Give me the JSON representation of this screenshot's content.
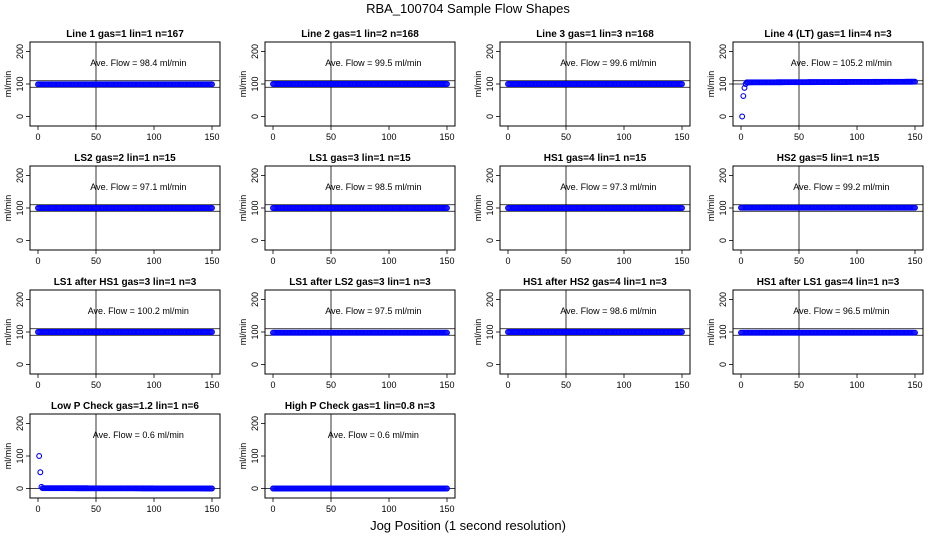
{
  "title": "RBA_100704  Sample Flow Shapes",
  "xlabel": "Jog Position (1 second resolution)",
  "ylabel": "ml/min",
  "annotation_prefix": "Ave. Flow = ",
  "annotation_unit": "ml/min",
  "colors": {
    "points": "#0000ff",
    "frame": "#000000"
  },
  "chart_data": [
    {
      "type": "scatter",
      "title": "Line 1 gas=1 lin=1 n=167",
      "ave_flow": "98.4",
      "xlim": [
        0,
        150
      ],
      "ylim": [
        -20,
        220
      ],
      "xticks": [
        0,
        50,
        100,
        150
      ],
      "yticks": [
        0,
        100,
        200
      ],
      "hlines": [
        90,
        110
      ],
      "vline": 50,
      "x": [
        0,
        150
      ],
      "y": [
        99,
        99
      ],
      "grid": false
    },
    {
      "type": "scatter",
      "title": "Line 2 gas=1 lin=2 n=168",
      "ave_flow": "99.5",
      "xlim": [
        0,
        150
      ],
      "ylim": [
        -20,
        220
      ],
      "xticks": [
        0,
        50,
        100,
        150
      ],
      "yticks": [
        0,
        100,
        200
      ],
      "hlines": [
        90,
        110
      ],
      "vline": 50,
      "x": [
        0,
        150
      ],
      "y": [
        100,
        100
      ],
      "grid": false
    },
    {
      "type": "scatter",
      "title": "Line 3 gas=1 lin=3 n=168",
      "ave_flow": "99.6",
      "xlim": [
        0,
        150
      ],
      "ylim": [
        -20,
        220
      ],
      "xticks": [
        0,
        50,
        100,
        150
      ],
      "yticks": [
        0,
        100,
        200
      ],
      "hlines": [
        90,
        110
      ],
      "vline": 50,
      "x": [
        0,
        150
      ],
      "y": [
        100,
        100
      ],
      "grid": false
    },
    {
      "type": "scatter",
      "title": "Line 4 (LT) gas=1 lin=4 n=3",
      "ave_flow": "105.2",
      "xlim": [
        0,
        150
      ],
      "ylim": [
        -20,
        220
      ],
      "xticks": [
        0,
        50,
        100,
        150
      ],
      "yticks": [
        0,
        100,
        200
      ],
      "hlines": [
        100,
        110
      ],
      "vline": 50,
      "x": [
        1,
        2,
        3,
        4,
        5,
        150
      ],
      "y": [
        0,
        63,
        88,
        100,
        105,
        107
      ],
      "grid": false
    },
    {
      "type": "scatter",
      "title": "LS2 gas=2 lin=1 n=15",
      "ave_flow": "97.1",
      "xlim": [
        0,
        150
      ],
      "ylim": [
        -20,
        220
      ],
      "xticks": [
        0,
        50,
        100,
        150
      ],
      "yticks": [
        0,
        100,
        200
      ],
      "hlines": [
        90,
        110
      ],
      "vline": 50,
      "x": [
        0,
        150
      ],
      "y": [
        100,
        100
      ],
      "grid": false
    },
    {
      "type": "scatter",
      "title": "LS1 gas=3 lin=1 n=15",
      "ave_flow": "98.5",
      "xlim": [
        0,
        150
      ],
      "ylim": [
        -20,
        220
      ],
      "xticks": [
        0,
        50,
        100,
        150
      ],
      "yticks": [
        0,
        100,
        200
      ],
      "hlines": [
        90,
        110
      ],
      "vline": 50,
      "x": [
        0,
        150
      ],
      "y": [
        100,
        100
      ],
      "grid": false
    },
    {
      "type": "scatter",
      "title": "HS1 gas=4 lin=1 n=15",
      "ave_flow": "97.3",
      "xlim": [
        0,
        150
      ],
      "ylim": [
        -20,
        220
      ],
      "xticks": [
        0,
        50,
        100,
        150
      ],
      "yticks": [
        0,
        100,
        200
      ],
      "hlines": [
        90,
        110
      ],
      "vline": 50,
      "x": [
        0,
        150
      ],
      "y": [
        100,
        100
      ],
      "grid": false
    },
    {
      "type": "scatter",
      "title": "HS2 gas=5 lin=1 n=15",
      "ave_flow": "99.2",
      "xlim": [
        0,
        150
      ],
      "ylim": [
        -20,
        220
      ],
      "xticks": [
        0,
        50,
        100,
        150
      ],
      "yticks": [
        0,
        100,
        200
      ],
      "hlines": [
        90,
        110
      ],
      "vline": 50,
      "x": [
        0,
        150
      ],
      "y": [
        101,
        101
      ],
      "grid": false
    },
    {
      "type": "scatter",
      "title": "LS1 after HS1 gas=3 lin=1 n=3",
      "ave_flow": "100.2",
      "xlim": [
        0,
        150
      ],
      "ylim": [
        -20,
        220
      ],
      "xticks": [
        0,
        50,
        100,
        150
      ],
      "yticks": [
        0,
        100,
        200
      ],
      "hlines": [
        90,
        110
      ],
      "vline": 50,
      "x": [
        0,
        150
      ],
      "y": [
        100,
        100
      ],
      "grid": false
    },
    {
      "type": "scatter",
      "title": "LS1 after LS2 gas=3 lin=1 n=3",
      "ave_flow": "97.5",
      "xlim": [
        0,
        150
      ],
      "ylim": [
        -20,
        220
      ],
      "xticks": [
        0,
        50,
        100,
        150
      ],
      "yticks": [
        0,
        100,
        200
      ],
      "hlines": [
        90,
        110
      ],
      "vline": 50,
      "x": [
        0,
        150
      ],
      "y": [
        98,
        98
      ],
      "grid": false
    },
    {
      "type": "scatter",
      "title": "HS1 after HS2 gas=4 lin=1 n=3",
      "ave_flow": "98.6",
      "xlim": [
        0,
        150
      ],
      "ylim": [
        -20,
        220
      ],
      "xticks": [
        0,
        50,
        100,
        150
      ],
      "yticks": [
        0,
        100,
        200
      ],
      "hlines": [
        90,
        110
      ],
      "vline": 50,
      "x": [
        0,
        150
      ],
      "y": [
        100,
        100
      ],
      "grid": false
    },
    {
      "type": "scatter",
      "title": "HS1 after LS1 gas=4 lin=1 n=3",
      "ave_flow": "96.5",
      "xlim": [
        0,
        150
      ],
      "ylim": [
        -20,
        220
      ],
      "xticks": [
        0,
        50,
        100,
        150
      ],
      "yticks": [
        0,
        100,
        200
      ],
      "hlines": [
        90,
        110
      ],
      "vline": 50,
      "x": [
        0,
        150
      ],
      "y": [
        98,
        98
      ],
      "grid": false
    },
    {
      "type": "scatter",
      "title": "Low P Check gas=1.2 lin=1 n=6",
      "ave_flow": "0.6",
      "xlim": [
        0,
        150
      ],
      "ylim": [
        -20,
        220
      ],
      "xticks": [
        0,
        50,
        100,
        150
      ],
      "yticks": [
        0,
        100,
        200
      ],
      "hlines": [
        0
      ],
      "vline": 50,
      "x": [
        1,
        2,
        3,
        4,
        150
      ],
      "y": [
        100,
        50,
        5,
        1,
        0
      ],
      "grid": false
    },
    {
      "type": "scatter",
      "title": "High P Check gas=1 lin=0.8 n=3",
      "ave_flow": "0.6",
      "xlim": [
        0,
        150
      ],
      "ylim": [
        -20,
        220
      ],
      "xticks": [
        0,
        50,
        100,
        150
      ],
      "yticks": [
        0,
        100,
        200
      ],
      "hlines": [
        0
      ],
      "vline": 50,
      "x": [
        0,
        150
      ],
      "y": [
        0,
        0
      ],
      "grid": false
    }
  ]
}
